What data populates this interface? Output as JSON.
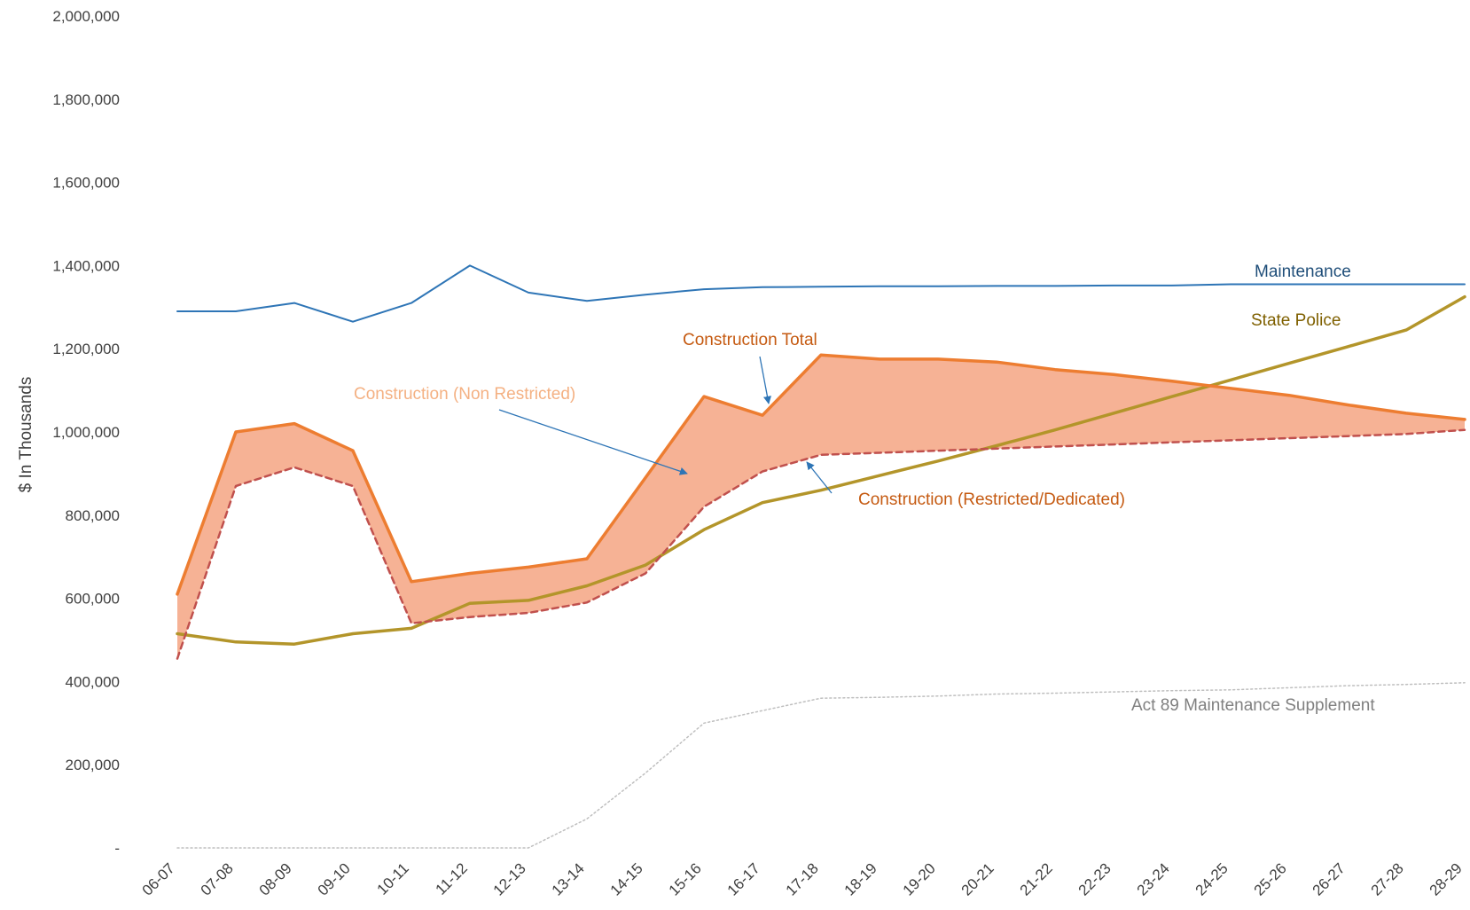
{
  "chart_data": {
    "type": "line",
    "ylabel": "$ In Thousands",
    "xlabel": "",
    "ylim": [
      0,
      2000000
    ],
    "yticks": [
      0,
      200000,
      400000,
      600000,
      800000,
      1000000,
      1200000,
      1400000,
      1600000,
      1800000,
      2000000
    ],
    "yticklabels": [
      "-",
      "200,000",
      "400,000",
      "600,000",
      "800,000",
      "1,000,000",
      "1,200,000",
      "1,400,000",
      "1,600,000",
      "1,800,000",
      "2,000,000"
    ],
    "categories": [
      "06-07",
      "07-08",
      "08-09",
      "09-10",
      "10-11",
      "11-12",
      "12-13",
      "13-14",
      "14-15",
      "15-16",
      "16-17",
      "17-18",
      "18-19",
      "19-20",
      "20-21",
      "21-22",
      "22-23",
      "23-24",
      "24-25",
      "25-26",
      "26-27",
      "27-28",
      "28-29"
    ],
    "grid": false,
    "legend": "none",
    "series": [
      {
        "name": "Maintenance",
        "color": "#2e75b6",
        "values": [
          1290000,
          1290000,
          1310000,
          1265000,
          1310000,
          1400000,
          1335000,
          1315000,
          1330000,
          1343000,
          1348000,
          1349000,
          1350000,
          1350000,
          1351000,
          1351000,
          1352000,
          1352000,
          1355000,
          1355000,
          1355000,
          1355000,
          1355000
        ]
      },
      {
        "name": "State Police",
        "color": "#b3952a",
        "values": [
          515000,
          495000,
          490000,
          515000,
          528000,
          588000,
          595000,
          630000,
          680000,
          765000,
          830000,
          860000,
          895000,
          930000,
          967000,
          1005000,
          1045000,
          1085000,
          1125000,
          1165000,
          1205000,
          1245000,
          1325000
        ]
      },
      {
        "name": "Construction Total",
        "color": "#ed7d31",
        "values": [
          610000,
          1000000,
          1020000,
          955000,
          640000,
          660000,
          675000,
          695000,
          890000,
          1085000,
          1040000,
          1185000,
          1175000,
          1175000,
          1168000,
          1150000,
          1138000,
          1122000,
          1105000,
          1088000,
          1065000,
          1045000,
          1030000
        ]
      },
      {
        "name": "Construction (Restricted/Dedicated)",
        "color": "#c0504d",
        "values": [
          455000,
          870000,
          915000,
          870000,
          540000,
          555000,
          565000,
          590000,
          660000,
          820000,
          905000,
          945000,
          950000,
          955000,
          960000,
          965000,
          970000,
          975000,
          980000,
          985000,
          990000,
          995000,
          1005000
        ]
      },
      {
        "name": "Act 89 Maintenance Supplement",
        "color": "#bfbfbf",
        "values": [
          0,
          0,
          0,
          0,
          0,
          0,
          0,
          70000,
          180000,
          300000,
          330000,
          360000,
          362000,
          365000,
          370000,
          372000,
          375000,
          378000,
          380000,
          385000,
          390000,
          393000,
          397000
        ]
      }
    ],
    "annotations": [
      {
        "text": "Maintenance",
        "color": "#1f4e79"
      },
      {
        "text": "State Police",
        "color": "#7f6000"
      },
      {
        "text": "Construction Total",
        "color": "#c55a11"
      },
      {
        "text": "Construction (Non Restricted)",
        "color": "#f4b183"
      },
      {
        "text": "Construction (Restricted/Dedicated)",
        "color": "#c55a11"
      },
      {
        "text": "Act 89 Maintenance Supplement",
        "color": "#808080"
      }
    ],
    "fill": {
      "between": [
        "Construction Total",
        "Construction (Restricted/Dedicated)"
      ],
      "color": "#f4a582"
    }
  }
}
